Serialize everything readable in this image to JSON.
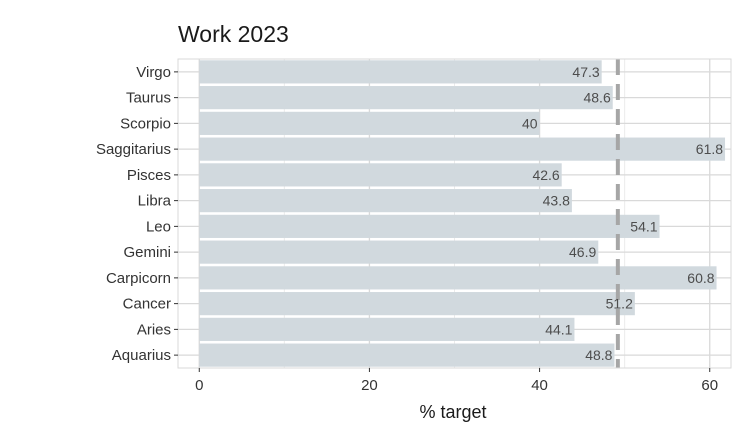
{
  "chart_data": {
    "type": "bar",
    "orientation": "horizontal",
    "title": "Work 2023",
    "xlabel": "% target",
    "ylabel": "",
    "categories": [
      "Virgo",
      "Taurus",
      "Scorpio",
      "Saggitarius",
      "Pisces",
      "Libra",
      "Leo",
      "Gemini",
      "Carpicorn",
      "Cancer",
      "Aries",
      "Aquarius"
    ],
    "values": [
      47.3,
      48.6,
      40,
      61.8,
      42.6,
      43.8,
      54.1,
      46.9,
      60.8,
      51.2,
      44.1,
      48.8
    ],
    "value_labels": [
      "47.3",
      "48.6",
      "40",
      "61.8",
      "42.6",
      "43.8",
      "54.1",
      "46.9",
      "60.8",
      "51.2",
      "44.1",
      "48.8"
    ],
    "xlim": [
      -2.5,
      62.5
    ],
    "xticks": [
      0,
      20,
      40,
      60
    ],
    "xtick_labels": [
      "0",
      "20",
      "40",
      "60"
    ],
    "reference_line": 49.2,
    "grid": true,
    "legend": "none",
    "colors": {
      "bar": "#d1d9de",
      "reference_line": "#a6a6a6",
      "grid_major": "#d9d9d9",
      "grid_minor": "#ebebeb",
      "panel_border": "#d9d9d9"
    }
  }
}
